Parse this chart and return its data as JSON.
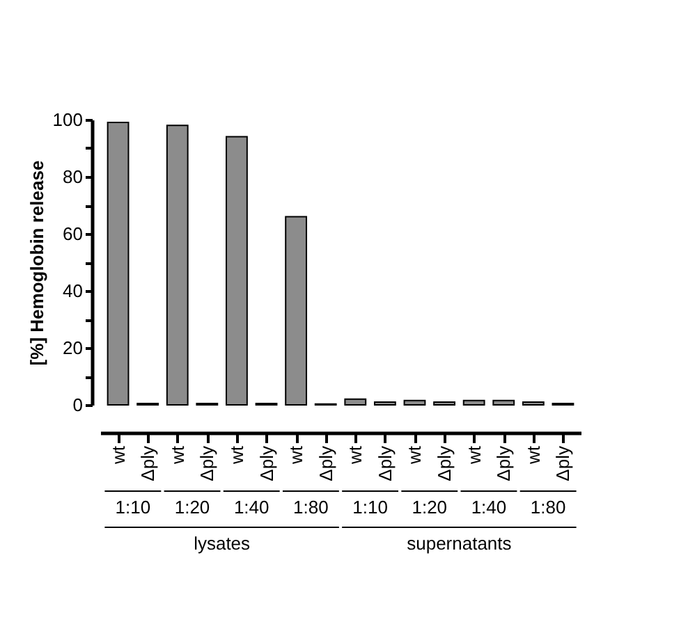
{
  "chart_data": {
    "type": "bar",
    "ylabel": "[%] Hemoglobin release",
    "categories": [
      "wt",
      "Δply",
      "wt",
      "Δply",
      "wt",
      "Δply",
      "wt",
      "Δply",
      "wt",
      "Δply",
      "wt",
      "Δply",
      "wt",
      "Δply",
      "wt",
      "Δply"
    ],
    "values": [
      99,
      0.5,
      98,
      0.5,
      94,
      0.5,
      66,
      0.3,
      2,
      1,
      1.5,
      1,
      1.5,
      1.5,
      1,
      0.5
    ],
    "color": "#8c8c8c",
    "ylim": [
      0,
      100
    ],
    "yticks": [
      0,
      {
        "value": 10,
        "label": null
      },
      20,
      {
        "value": 30,
        "label": null
      },
      40,
      {
        "value": 50,
        "label": null
      },
      60,
      {
        "value": 70,
        "label": null
      },
      80,
      {
        "value": 90,
        "label": null
      },
      100
    ],
    "grid": false,
    "annotations": [
      "1:10",
      "1:20",
      "1:40",
      "1:80",
      "1:10",
      "1:20",
      "1:40",
      "1:80",
      "lysates",
      "supernatants"
    ]
  }
}
